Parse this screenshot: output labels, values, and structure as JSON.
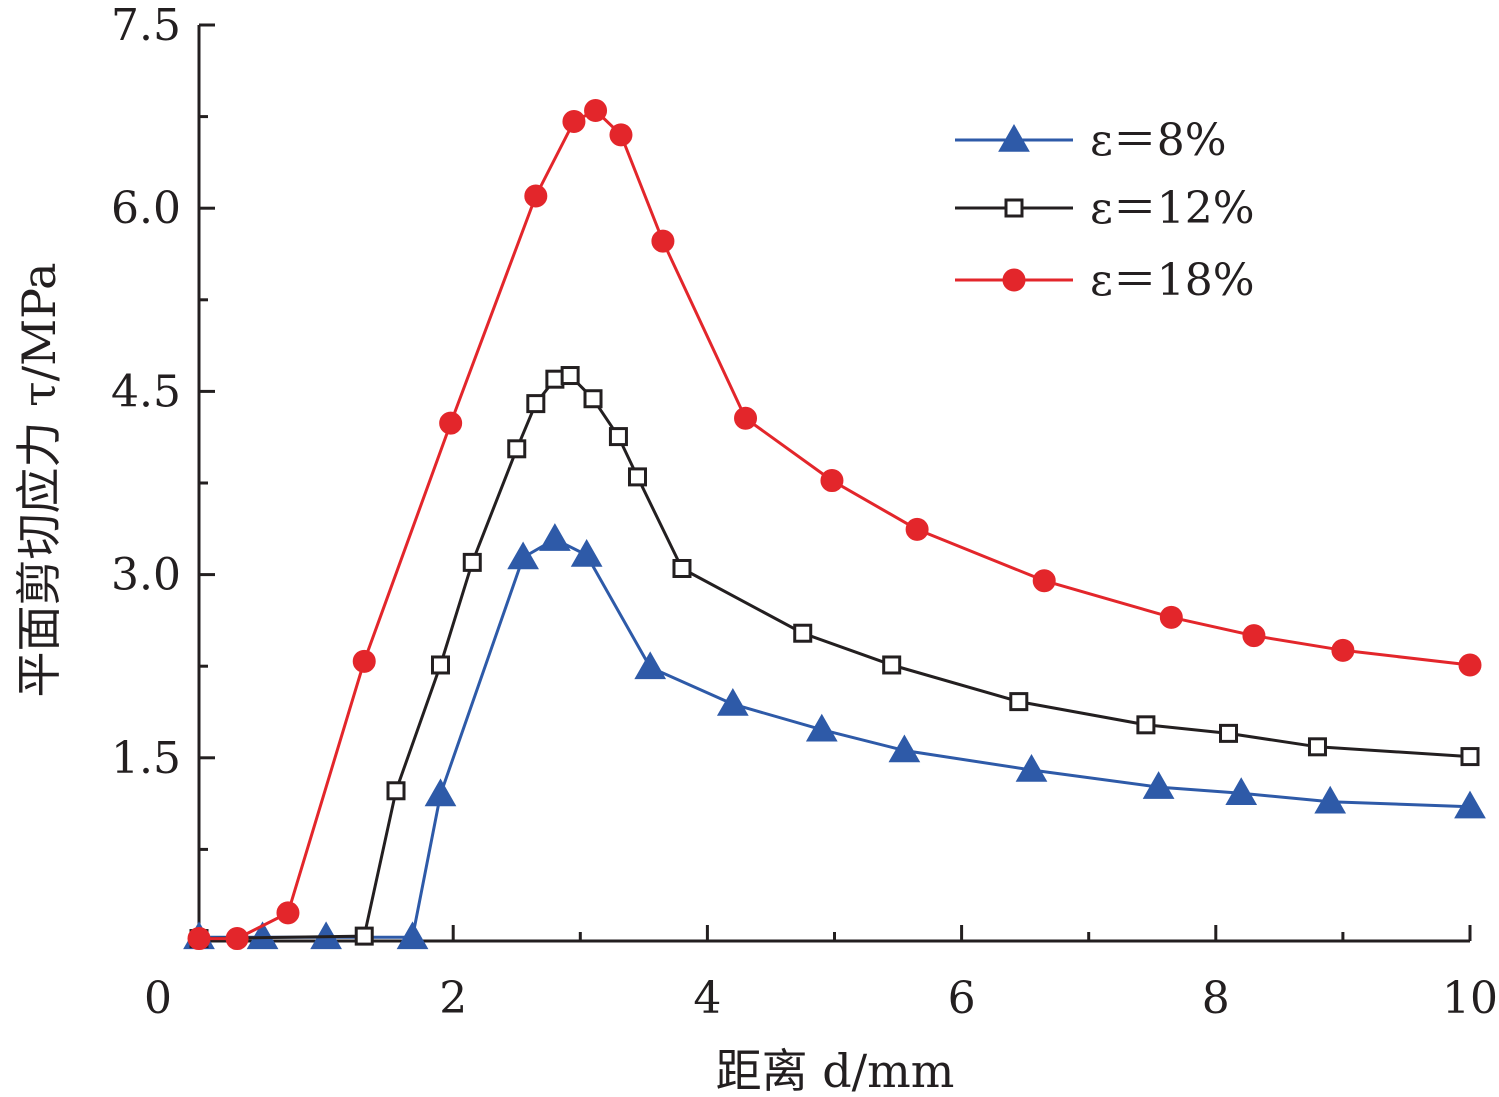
{
  "chart_data": {
    "type": "line",
    "title": "",
    "xlabel": "距离 d/mm",
    "ylabel": "平面剪切应力 τ/MPa",
    "xlim": [
      0,
      10
    ],
    "ylim": [
      0,
      7.5
    ],
    "x_major_ticks": [
      0,
      2,
      4,
      6,
      8,
      10
    ],
    "x_tick_labels": [
      "0",
      "2",
      "4",
      "6",
      "8",
      "10"
    ],
    "x_minor_ticks": [
      1,
      3,
      5,
      7,
      9
    ],
    "y_ticks": [
      1.5,
      3.0,
      4.5,
      6.0,
      7.5
    ],
    "y_tick_labels": [
      "1.5",
      "3.0",
      "4.5",
      "6.0",
      "7.5"
    ],
    "y_minor_ticks": [
      0.75,
      2.25,
      3.75,
      5.25,
      6.75
    ],
    "grid": false,
    "legend_position": "top-right",
    "series": [
      {
        "name": "ε＝8%",
        "color": "#2e5aa8",
        "marker": "filled-triangle",
        "points": [
          [
            0.0,
            0.03
          ],
          [
            0.5,
            0.03
          ],
          [
            1.0,
            0.03
          ],
          [
            1.68,
            0.03
          ],
          [
            1.9,
            1.2
          ],
          [
            2.55,
            3.14
          ],
          [
            2.8,
            3.29
          ],
          [
            3.05,
            3.16
          ],
          [
            3.55,
            2.24
          ],
          [
            4.2,
            1.94
          ],
          [
            4.9,
            1.73
          ],
          [
            5.55,
            1.56
          ],
          [
            6.55,
            1.4
          ],
          [
            7.55,
            1.26
          ],
          [
            8.2,
            1.21
          ],
          [
            8.9,
            1.14
          ],
          [
            10.0,
            1.1
          ]
        ]
      },
      {
        "name": "ε＝12%",
        "color": "#231f20",
        "marker": "open-square",
        "points": [
          [
            0.0,
            0.02
          ],
          [
            1.3,
            0.04
          ],
          [
            1.55,
            1.23
          ],
          [
            1.9,
            2.26
          ],
          [
            2.15,
            3.1
          ],
          [
            2.5,
            4.03
          ],
          [
            2.65,
            4.4
          ],
          [
            2.8,
            4.6
          ],
          [
            2.92,
            4.63
          ],
          [
            3.1,
            4.44
          ],
          [
            3.3,
            4.13
          ],
          [
            3.45,
            3.8
          ],
          [
            3.8,
            3.05
          ],
          [
            4.75,
            2.52
          ],
          [
            5.45,
            2.26
          ],
          [
            6.45,
            1.96
          ],
          [
            7.45,
            1.77
          ],
          [
            8.1,
            1.7
          ],
          [
            8.8,
            1.59
          ],
          [
            10.0,
            1.51
          ]
        ]
      },
      {
        "name": "ε＝18%",
        "color": "#e3262b",
        "marker": "filled-circle",
        "points": [
          [
            0.0,
            0.02
          ],
          [
            0.3,
            0.02
          ],
          [
            0.7,
            0.23
          ],
          [
            1.3,
            2.29
          ],
          [
            1.98,
            4.24
          ],
          [
            2.65,
            6.1
          ],
          [
            2.95,
            6.71
          ],
          [
            3.12,
            6.8
          ],
          [
            3.32,
            6.6
          ],
          [
            3.65,
            5.73
          ],
          [
            4.3,
            4.28
          ],
          [
            4.98,
            3.77
          ],
          [
            5.65,
            3.37
          ],
          [
            6.65,
            2.95
          ],
          [
            7.65,
            2.65
          ],
          [
            8.3,
            2.5
          ],
          [
            9.0,
            2.38
          ],
          [
            10.0,
            2.26
          ]
        ]
      }
    ]
  }
}
